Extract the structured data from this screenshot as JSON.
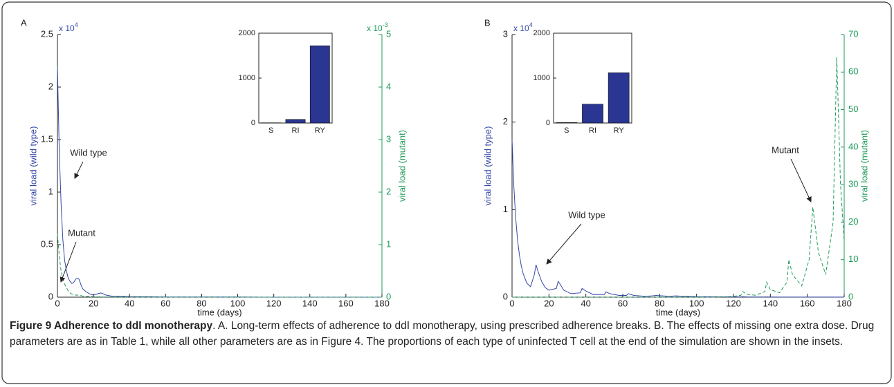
{
  "chart_data": [
    {
      "type": "line",
      "panel_label": "A",
      "xlabel": "time (days)",
      "ylabel": "viral load (wild type)",
      "y2label": "viral load (mutant)",
      "y_multiplier": {
        "base": "x 10",
        "exponent": "4"
      },
      "y2_multiplier": {
        "base": "x 10",
        "exponent": "-3"
      },
      "x": [
        0,
        1,
        2,
        3,
        4,
        5,
        6,
        7,
        8,
        9,
        10,
        11,
        12,
        13,
        14,
        16,
        18,
        20,
        22,
        24,
        25,
        27,
        30,
        35,
        40,
        50,
        60,
        80,
        100,
        120,
        140,
        160,
        180
      ],
      "xlim": [
        0,
        180
      ],
      "xticks": [
        0,
        20,
        40,
        60,
        80,
        100,
        120,
        140,
        160,
        180
      ],
      "ylim": [
        0,
        2.5
      ],
      "yticks": [
        0,
        0.5,
        1,
        1.5,
        2,
        2.5
      ],
      "y2lim": [
        0,
        5
      ],
      "y2ticks": [
        0,
        1,
        2,
        3,
        4,
        5
      ],
      "series": [
        {
          "name": "Wild type",
          "color": "#3346a6",
          "values": [
            2.2,
            1.4,
            0.9,
            0.55,
            0.35,
            0.25,
            0.18,
            0.15,
            0.13,
            0.14,
            0.17,
            0.18,
            0.17,
            0.12,
            0.08,
            0.05,
            0.03,
            0.02,
            0.03,
            0.04,
            0.035,
            0.02,
            0.01,
            0.008,
            0.005,
            0.004,
            0.002,
            0.001,
            0.001,
            0,
            0,
            0,
            0
          ]
        },
        {
          "name": "Mutant",
          "color": "#1e9a58",
          "axis": "y2",
          "dashed": true,
          "values": [
            1.2,
            0.8,
            0.5,
            0.35,
            0.25,
            0.18,
            0.12,
            0.08,
            0.06,
            0.05,
            0.04,
            0.04,
            0.035,
            0.03,
            0.02,
            0.015,
            0.01,
            0.008,
            0.006,
            0.005,
            0.004,
            0.003,
            0.002,
            0.001,
            0.001,
            0,
            0,
            0,
            0,
            0,
            0,
            0,
            0
          ]
        }
      ]
    },
    {
      "type": "bar",
      "categories": [
        "S",
        "RI",
        "RY"
      ],
      "values": [
        5,
        80,
        1720
      ],
      "color": "#2b3592",
      "ylim": [
        0,
        2000
      ],
      "yticks": [
        0,
        1000,
        2000
      ]
    },
    {
      "type": "line",
      "panel_label": "B",
      "xlabel": "time (days)",
      "ylabel": "viral load (wild type)",
      "y2label": "viral load (mutant)",
      "y_multiplier": {
        "base": "x 10",
        "exponent": "4"
      },
      "x": [
        0,
        1,
        2,
        3,
        4,
        5,
        6,
        8,
        10,
        12,
        13,
        14,
        16,
        18,
        20,
        24,
        25,
        26,
        28,
        32,
        37,
        38,
        40,
        44,
        50,
        51,
        53,
        58,
        62,
        63,
        66,
        72,
        76,
        78,
        85,
        89,
        92,
        100,
        110,
        120,
        124,
        125,
        127,
        132,
        137,
        138,
        140,
        145,
        149,
        150,
        152,
        157,
        161,
        163,
        166,
        170,
        174,
        176,
        178,
        180
      ],
      "xlim": [
        0,
        180
      ],
      "xticks": [
        0,
        20,
        40,
        60,
        80,
        100,
        120,
        140,
        160,
        180
      ],
      "ylim": [
        0,
        3
      ],
      "yticks": [
        0,
        1,
        2,
        3
      ],
      "y2lim": [
        0,
        70
      ],
      "y2ticks": [
        0,
        10,
        20,
        30,
        40,
        50,
        60,
        70
      ],
      "series": [
        {
          "name": "Wild type",
          "color": "#3346a6",
          "values": [
            1.8,
            1.25,
            0.9,
            0.65,
            0.48,
            0.36,
            0.27,
            0.16,
            0.12,
            0.25,
            0.37,
            0.3,
            0.18,
            0.11,
            0.08,
            0.1,
            0.18,
            0.15,
            0.08,
            0.04,
            0.05,
            0.1,
            0.07,
            0.03,
            0.03,
            0.06,
            0.04,
            0.02,
            0.02,
            0.04,
            0.02,
            0.01,
            0.015,
            0.02,
            0.01,
            0.015,
            0.01,
            0.005,
            0.004,
            0.003,
            0.003,
            0.005,
            0.003,
            0.002,
            0.002,
            0.003,
            0.002,
            0.001,
            0.001,
            0.001,
            0.001,
            0.001,
            0.001,
            0.001,
            0.001,
            0.001,
            0.001,
            0.001,
            0.001,
            0.001
          ]
        },
        {
          "name": "Mutant",
          "color": "#1e9a58",
          "axis": "y2",
          "dashed": true,
          "values": [
            0,
            0,
            0,
            0,
            0,
            0,
            0,
            0,
            0,
            0,
            0,
            0,
            0,
            0,
            0,
            0,
            0,
            0,
            0,
            0,
            0,
            0,
            0,
            0,
            0,
            0,
            0,
            0,
            0,
            0,
            0,
            0,
            0,
            0,
            0,
            0,
            0,
            0,
            0,
            0.2,
            0.5,
            1.5,
            0.8,
            0.5,
            1.5,
            4,
            2,
            1.2,
            4,
            10,
            6,
            3,
            10,
            24,
            12,
            6,
            20,
            64,
            30,
            15
          ]
        }
      ]
    },
    {
      "type": "bar",
      "categories": [
        "S",
        "RI",
        "RY"
      ],
      "values": [
        10,
        420,
        1120
      ],
      "color": "#2b3592",
      "ylim": [
        0,
        2000
      ],
      "yticks": [
        0,
        1000,
        2000
      ]
    }
  ],
  "caption": {
    "title": "Figure 9 Adherence to ddI monotherapy",
    "text": ". A. Long-term effects of adherence to ddI monotherapy, using prescribed adherence breaks. B. The effects of missing one extra dose. Drug parameters are as in Table 1, while all other parameters are as in Figure 4. The proportions of each type of uninfected T cell at the end of the simulation are shown in the insets."
  }
}
